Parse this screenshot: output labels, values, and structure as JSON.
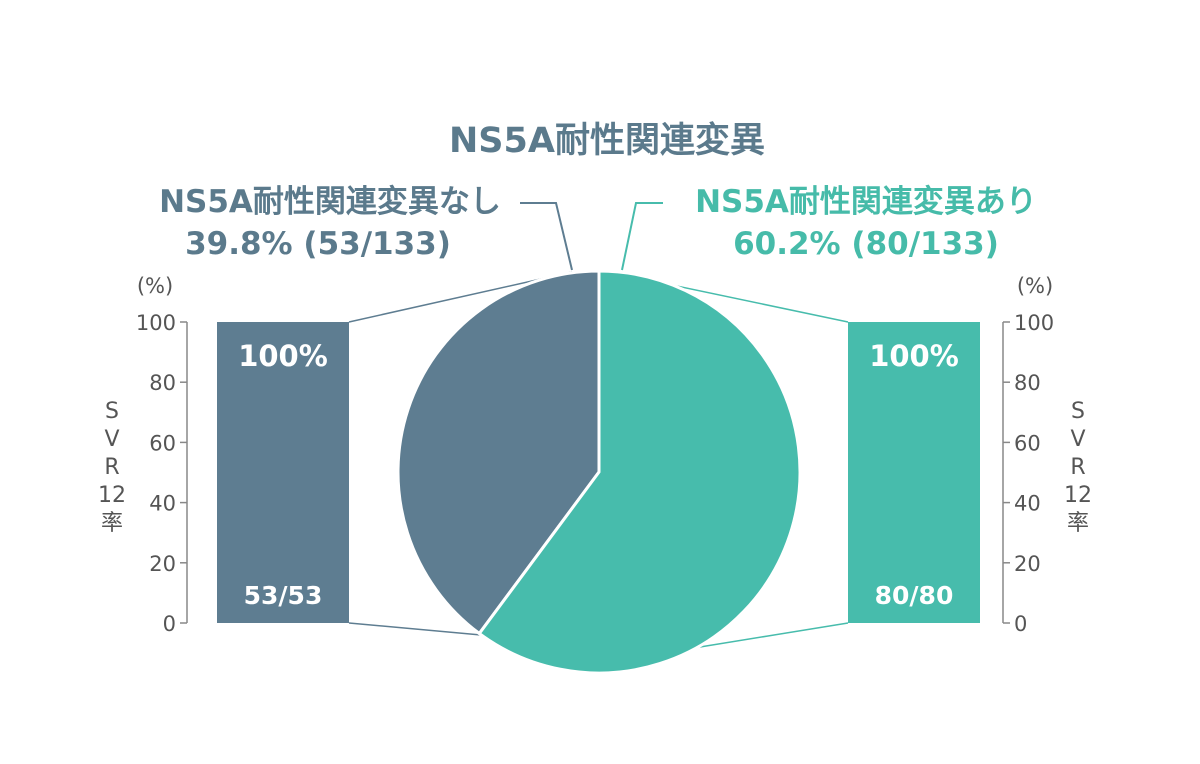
{
  "colors": {
    "without": "#5e7d91",
    "with": "#47bcac",
    "axis": "#888888",
    "text_dark": "#555555"
  },
  "chart_data": [
    {
      "type": "pie",
      "title": "NS5A耐性関連変異",
      "slices": [
        {
          "label": "NS5A耐性関連変異なし",
          "percent_text": "39.8%",
          "count_text": "(53/133)",
          "value": 53
        },
        {
          "label": "NS5A耐性関連変異あり",
          "percent_text": "60.2%",
          "count_text": "(80/133)",
          "value": 80
        }
      ],
      "total": 133
    },
    {
      "type": "bar",
      "ylabel": "SVR12率",
      "unit": "(%)",
      "ylim": [
        0,
        100
      ],
      "ticks": [
        "0",
        "20",
        "40",
        "60",
        "80",
        "100"
      ],
      "categories": [
        "NS5A耐性関連変異なし"
      ],
      "values": [
        100
      ],
      "value_label": "100%",
      "count_label": "53/53"
    },
    {
      "type": "bar",
      "ylabel": "SVR12率",
      "unit": "(%)",
      "ylim": [
        0,
        100
      ],
      "ticks": [
        "0",
        "20",
        "40",
        "60",
        "80",
        "100"
      ],
      "categories": [
        "NS5A耐性関連変異あり"
      ],
      "values": [
        100
      ],
      "value_label": "100%",
      "count_label": "80/80"
    }
  ]
}
